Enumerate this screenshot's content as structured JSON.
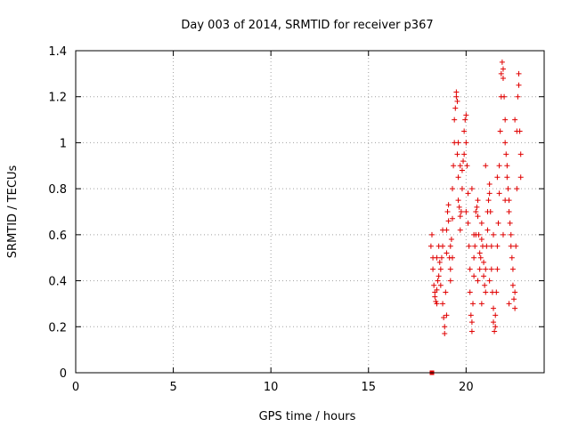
{
  "chart_data": {
    "type": "scatter",
    "title": "Day 003 of 2014, SRMTID for receiver p367",
    "xlabel": "GPS time / hours",
    "ylabel": "SRMTID / TECUs",
    "xlim": [
      0,
      24
    ],
    "ylim": [
      0,
      1.4
    ],
    "xticks": [
      0,
      5,
      10,
      15,
      20
    ],
    "xtick_labels": [
      "0",
      "5",
      "10",
      "15",
      "20"
    ],
    "yticks": [
      0,
      0.2,
      0.4,
      0.6,
      0.8,
      1.0,
      1.2,
      1.4
    ],
    "ytick_labels": [
      "0",
      "0.2",
      "0.4",
      "0.6",
      "0.8",
      "1",
      "1.2",
      "1.4"
    ],
    "grid": true,
    "marker": "plus",
    "color": "#e00000",
    "baseline_marker": {
      "x": 18.25,
      "y": 0
    },
    "series": [
      {
        "name": "SRMTID",
        "points": [
          [
            18.2,
            0.55
          ],
          [
            18.25,
            0.6
          ],
          [
            18.3,
            0.5
          ],
          [
            18.3,
            0.45
          ],
          [
            18.35,
            0.38
          ],
          [
            18.4,
            0.35
          ],
          [
            18.4,
            0.33
          ],
          [
            18.45,
            0.31
          ],
          [
            18.5,
            0.3
          ],
          [
            18.5,
            0.36
          ],
          [
            18.55,
            0.4
          ],
          [
            18.6,
            0.42
          ],
          [
            18.6,
            0.55
          ],
          [
            18.65,
            0.48
          ],
          [
            18.7,
            0.38
          ],
          [
            18.7,
            0.45
          ],
          [
            18.75,
            0.5
          ],
          [
            18.8,
            0.55
          ],
          [
            18.8,
            0.3
          ],
          [
            18.85,
            0.24
          ],
          [
            18.9,
            0.2
          ],
          [
            18.9,
            0.17
          ],
          [
            18.95,
            0.35
          ],
          [
            19.0,
            0.52
          ],
          [
            19.0,
            0.62
          ],
          [
            19.05,
            0.7
          ],
          [
            19.1,
            0.73
          ],
          [
            19.1,
            0.66
          ],
          [
            19.15,
            0.5
          ],
          [
            19.2,
            0.45
          ],
          [
            19.2,
            0.4
          ],
          [
            19.25,
            0.58
          ],
          [
            19.3,
            0.67
          ],
          [
            19.3,
            0.8
          ],
          [
            19.35,
            0.9
          ],
          [
            19.4,
            1.0
          ],
          [
            19.4,
            1.1
          ],
          [
            19.45,
            1.15
          ],
          [
            19.5,
            1.2
          ],
          [
            19.5,
            1.22
          ],
          [
            19.55,
            1.18
          ],
          [
            19.55,
            0.95
          ],
          [
            19.6,
            0.85
          ],
          [
            19.6,
            0.75
          ],
          [
            19.65,
            0.72
          ],
          [
            19.7,
            0.68
          ],
          [
            19.7,
            0.62
          ],
          [
            19.75,
            0.7
          ],
          [
            19.8,
            0.8
          ],
          [
            19.8,
            0.88
          ],
          [
            19.85,
            0.92
          ],
          [
            19.9,
            0.95
          ],
          [
            19.9,
            1.05
          ],
          [
            19.95,
            1.1
          ],
          [
            20.0,
            1.12
          ],
          [
            20.0,
            1.0
          ],
          [
            20.05,
            0.9
          ],
          [
            20.1,
            0.78
          ],
          [
            20.1,
            0.65
          ],
          [
            20.15,
            0.55
          ],
          [
            20.2,
            0.45
          ],
          [
            20.2,
            0.35
          ],
          [
            20.25,
            0.25
          ],
          [
            20.3,
            0.22
          ],
          [
            20.3,
            0.18
          ],
          [
            20.35,
            0.3
          ],
          [
            20.4,
            0.42
          ],
          [
            20.4,
            0.5
          ],
          [
            20.45,
            0.55
          ],
          [
            20.5,
            0.6
          ],
          [
            20.5,
            0.7
          ],
          [
            20.55,
            0.72
          ],
          [
            20.6,
            0.75
          ],
          [
            20.6,
            0.68
          ],
          [
            20.65,
            0.6
          ],
          [
            20.7,
            0.52
          ],
          [
            20.7,
            0.45
          ],
          [
            20.75,
            0.5
          ],
          [
            20.8,
            0.58
          ],
          [
            20.8,
            0.65
          ],
          [
            20.85,
            0.55
          ],
          [
            20.9,
            0.48
          ],
          [
            20.9,
            0.42
          ],
          [
            20.95,
            0.38
          ],
          [
            21.0,
            0.35
          ],
          [
            21.0,
            0.45
          ],
          [
            21.05,
            0.55
          ],
          [
            21.1,
            0.62
          ],
          [
            21.1,
            0.7
          ],
          [
            21.15,
            0.75
          ],
          [
            21.2,
            0.78
          ],
          [
            21.2,
            0.82
          ],
          [
            21.25,
            0.7
          ],
          [
            21.3,
            0.55
          ],
          [
            21.3,
            0.45
          ],
          [
            21.35,
            0.35
          ],
          [
            21.4,
            0.28
          ],
          [
            21.4,
            0.22
          ],
          [
            21.45,
            0.18
          ],
          [
            21.5,
            0.2
          ],
          [
            21.5,
            0.25
          ],
          [
            21.55,
            0.35
          ],
          [
            21.6,
            0.45
          ],
          [
            21.6,
            0.55
          ],
          [
            21.65,
            0.65
          ],
          [
            21.7,
            0.78
          ],
          [
            21.7,
            0.9
          ],
          [
            21.75,
            1.05
          ],
          [
            21.8,
            1.2
          ],
          [
            21.8,
            1.3
          ],
          [
            21.85,
            1.35
          ],
          [
            21.9,
            1.32
          ],
          [
            21.9,
            1.28
          ],
          [
            21.95,
            1.2
          ],
          [
            22.0,
            1.1
          ],
          [
            22.0,
            1.0
          ],
          [
            22.05,
            0.95
          ],
          [
            22.1,
            0.9
          ],
          [
            22.1,
            0.85
          ],
          [
            22.15,
            0.8
          ],
          [
            22.2,
            0.75
          ],
          [
            22.2,
            0.7
          ],
          [
            22.25,
            0.65
          ],
          [
            22.3,
            0.6
          ],
          [
            22.3,
            0.55
          ],
          [
            22.35,
            0.5
          ],
          [
            22.4,
            0.45
          ],
          [
            22.4,
            0.38
          ],
          [
            22.45,
            0.32
          ],
          [
            22.5,
            0.28
          ],
          [
            22.5,
            0.35
          ],
          [
            22.55,
            0.55
          ],
          [
            22.6,
            0.8
          ],
          [
            22.6,
            1.05
          ],
          [
            22.65,
            1.2
          ],
          [
            22.7,
            1.3
          ],
          [
            22.7,
            1.25
          ],
          [
            22.75,
            1.05
          ],
          [
            22.8,
            0.95
          ],
          [
            22.8,
            0.85
          ],
          [
            19.0,
            0.25
          ],
          [
            19.3,
            0.5
          ],
          [
            19.7,
            0.9
          ],
          [
            20.3,
            0.8
          ],
          [
            20.6,
            0.4
          ],
          [
            21.0,
            0.9
          ],
          [
            21.4,
            0.6
          ],
          [
            21.9,
            0.6
          ],
          [
            22.2,
            0.3
          ],
          [
            22.5,
            1.1
          ],
          [
            18.5,
            0.5
          ],
          [
            18.8,
            0.62
          ],
          [
            19.2,
            0.55
          ],
          [
            19.6,
            1.0
          ],
          [
            20.0,
            0.7
          ],
          [
            20.4,
            0.6
          ],
          [
            20.8,
            0.3
          ],
          [
            21.2,
            0.4
          ],
          [
            21.6,
            0.85
          ],
          [
            22.0,
            0.75
          ]
        ]
      }
    ]
  }
}
